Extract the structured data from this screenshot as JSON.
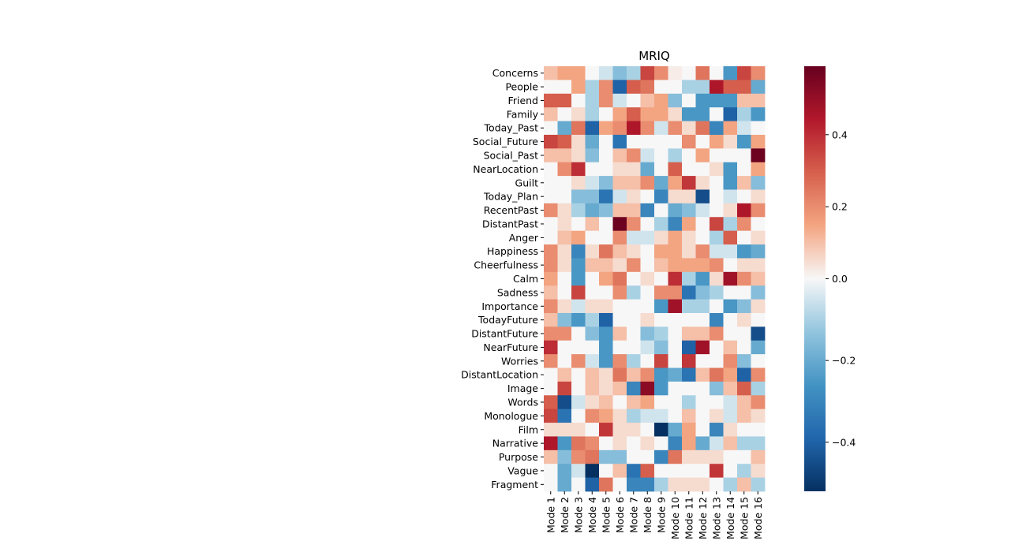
{
  "chart_data": {
    "type": "heatmap",
    "title": "MRIQ",
    "xlabel": "",
    "ylabel": "",
    "colormap": "RdBu_r",
    "vmin": -0.52,
    "vmax": 0.59,
    "colorbar_ticks": [
      0.4,
      0.2,
      0.0,
      -0.2,
      -0.4
    ],
    "colorbar_tick_labels": [
      "0.4",
      "0.2",
      "0.0",
      "−0.2",
      "−0.4"
    ],
    "x_categories": [
      "Mode 1",
      "Mode 2",
      "Mode 3",
      "Mode 4",
      "Mode 5",
      "Mode 6",
      "Mode 7",
      "Mode 8",
      "Mode 9",
      "Mode 10",
      "Mode 11",
      "Mode 12",
      "Mode 13",
      "Mode 14",
      "Mode 15",
      "Mode 16"
    ],
    "y_categories": [
      "Concerns",
      "People",
      "Friend",
      "Family",
      "Today_Past",
      "Social_Future",
      "Social_Past",
      "NearLocation",
      "Guilt",
      "Today_Plan",
      "RecentPast",
      "DistantPast",
      "Anger",
      "Happiness",
      "Cheerfulness",
      "Calm",
      "Sadness",
      "Importance",
      "TodayFuture",
      "DistantFuture",
      "NearFuture",
      "Worries",
      "DistantLocation",
      "Image",
      "Words",
      "Monologue",
      "Film",
      "Narrative",
      "Purpose",
      "Vague",
      "Fragment"
    ],
    "values": [
      [
        0.1,
        0.15,
        0.15,
        0.0,
        -0.05,
        -0.15,
        -0.1,
        0.35,
        0.2,
        0.02,
        0.0,
        0.25,
        0.0,
        -0.25,
        0.35,
        0.2
      ],
      [
        0.0,
        0.0,
        0.15,
        -0.1,
        0.2,
        -0.4,
        0.3,
        0.25,
        0.0,
        0.0,
        -0.1,
        -0.1,
        0.45,
        0.3,
        0.3,
        -0.2
      ],
      [
        0.3,
        0.3,
        0.0,
        -0.1,
        0.2,
        -0.05,
        0.0,
        0.1,
        0.15,
        -0.15,
        0.0,
        -0.25,
        -0.25,
        -0.25,
        0.1,
        0.1
      ],
      [
        0.1,
        0.0,
        0.05,
        -0.1,
        0.0,
        0.15,
        0.3,
        0.15,
        0.15,
        0.05,
        -0.25,
        -0.25,
        0.0,
        -0.4,
        -0.1,
        -0.25
      ],
      [
        0.0,
        -0.2,
        0.25,
        -0.4,
        0.15,
        0.2,
        0.45,
        0.2,
        -0.05,
        0.2,
        0.05,
        0.25,
        -0.3,
        0.15,
        -0.05,
        0.0
      ],
      [
        0.35,
        0.3,
        0.05,
        -0.2,
        0.0,
        -0.35,
        0.0,
        0.0,
        0.0,
        0.0,
        0.2,
        0.0,
        0.15,
        0.05,
        -0.25,
        0.15
      ],
      [
        0.1,
        0.1,
        0.05,
        -0.15,
        0.0,
        0.1,
        0.2,
        -0.05,
        0.0,
        -0.1,
        0.0,
        0.15,
        0.0,
        0.0,
        0.0,
        0.58
      ],
      [
        0.0,
        0.2,
        0.4,
        0.0,
        0.0,
        0.05,
        0.05,
        -0.2,
        0.0,
        0.3,
        0.0,
        0.0,
        0.05,
        -0.25,
        0.0,
        0.15
      ],
      [
        0.0,
        0.0,
        0.05,
        -0.05,
        -0.15,
        0.1,
        0.1,
        0.2,
        -0.2,
        0.15,
        0.38,
        0.05,
        0.0,
        -0.25,
        0.1,
        -0.15
      ],
      [
        0.0,
        0.0,
        -0.15,
        -0.15,
        -0.35,
        -0.05,
        0.05,
        0.0,
        -0.3,
        0.05,
        0.05,
        -0.45,
        0.0,
        -0.05,
        0.0,
        0.05
      ],
      [
        0.2,
        0.05,
        -0.1,
        -0.2,
        -0.15,
        0.1,
        0.1,
        -0.3,
        0.0,
        -0.2,
        -0.15,
        -0.05,
        0.0,
        0.05,
        0.45,
        0.2
      ],
      [
        0.0,
        0.05,
        0.0,
        0.1,
        0.0,
        0.58,
        0.2,
        0.0,
        -0.1,
        -0.3,
        0.15,
        0.0,
        0.35,
        -0.1,
        0.2,
        0.0
      ],
      [
        0.0,
        0.1,
        0.15,
        0.0,
        0.0,
        0.2,
        -0.05,
        -0.05,
        0.05,
        0.15,
        0.05,
        0.0,
        -0.1,
        0.3,
        0.0,
        0.05
      ],
      [
        0.2,
        0.05,
        -0.3,
        0.05,
        0.25,
        0.1,
        0.05,
        0.0,
        0.15,
        0.15,
        0.05,
        0.2,
        -0.05,
        -0.05,
        -0.25,
        -0.2
      ],
      [
        0.2,
        0.05,
        -0.25,
        0.1,
        0.1,
        0.05,
        0.2,
        0.0,
        0.1,
        0.15,
        0.15,
        0.15,
        0.2,
        0.0,
        0.05,
        0.05
      ],
      [
        0.15,
        0.0,
        -0.25,
        0.0,
        0.15,
        0.25,
        0.0,
        0.05,
        0.0,
        0.4,
        -0.1,
        -0.25,
        0.05,
        0.48,
        0.2,
        0.1
      ],
      [
        0.1,
        0.0,
        0.35,
        0.0,
        0.0,
        0.2,
        -0.1,
        0.0,
        0.2,
        0.2,
        -0.35,
        -0.15,
        -0.1,
        0.0,
        0.0,
        -0.15
      ],
      [
        0.2,
        0.05,
        -0.05,
        0.05,
        0.05,
        0.0,
        0.0,
        0.0,
        -0.25,
        0.48,
        -0.1,
        -0.1,
        0.0,
        -0.25,
        -0.15,
        0.05
      ],
      [
        0.1,
        -0.15,
        -0.25,
        -0.1,
        -0.4,
        0.0,
        0.0,
        0.05,
        0.0,
        0.0,
        0.0,
        0.0,
        -0.3,
        0.0,
        0.05,
        0.0
      ],
      [
        0.2,
        0.2,
        0.0,
        -0.15,
        -0.25,
        0.1,
        0.0,
        -0.15,
        -0.1,
        0.0,
        0.1,
        0.1,
        0.2,
        0.0,
        0.0,
        -0.45
      ],
      [
        0.4,
        0.0,
        0.0,
        0.0,
        -0.25,
        0.0,
        0.0,
        -0.05,
        -0.15,
        0.0,
        -0.4,
        0.48,
        0.0,
        0.1,
        0.0,
        -0.2
      ],
      [
        0.2,
        0.0,
        0.2,
        -0.05,
        -0.25,
        0.2,
        -0.1,
        0.0,
        0.35,
        0.0,
        0.38,
        0.0,
        0.0,
        0.2,
        -0.15,
        0.0
      ],
      [
        0.0,
        0.1,
        0.0,
        0.1,
        0.05,
        0.25,
        0.1,
        0.2,
        -0.25,
        -0.2,
        -0.35,
        0.1,
        0.25,
        0.15,
        -0.4,
        0.2
      ],
      [
        0.0,
        0.35,
        0.0,
        0.1,
        0.05,
        0.1,
        -0.3,
        0.52,
        -0.25,
        0.0,
        0.0,
        0.0,
        -0.15,
        0.1,
        0.3,
        -0.1
      ],
      [
        0.3,
        -0.45,
        -0.05,
        0.05,
        0.1,
        0.0,
        0.1,
        0.15,
        0.0,
        0.0,
        -0.1,
        0.0,
        0.0,
        -0.05,
        0.1,
        0.2
      ],
      [
        0.35,
        -0.35,
        0.0,
        0.2,
        0.15,
        0.05,
        -0.1,
        -0.05,
        -0.05,
        0.0,
        0.1,
        0.0,
        0.05,
        -0.05,
        0.1,
        0.05
      ],
      [
        0.05,
        0.05,
        0.05,
        0.0,
        0.38,
        0.05,
        0.05,
        0.0,
        -0.52,
        -0.2,
        0.15,
        0.0,
        -0.3,
        0.05,
        0.0,
        0.0
      ],
      [
        0.45,
        -0.25,
        0.25,
        0.2,
        0.0,
        0.05,
        0.0,
        0.05,
        0.0,
        -0.3,
        0.15,
        -0.2,
        -0.05,
        0.1,
        -0.1,
        -0.1
      ],
      [
        0.1,
        -0.15,
        0.2,
        0.25,
        -0.15,
        -0.15,
        0.0,
        0.0,
        -0.3,
        0.25,
        0.05,
        0.05,
        0.05,
        0.0,
        0.0,
        0.1
      ],
      [
        0.0,
        -0.2,
        -0.05,
        -0.52,
        0.0,
        0.1,
        -0.35,
        0.3,
        0.0,
        0.0,
        0.0,
        0.0,
        0.38,
        0.0,
        -0.1,
        0.05
      ],
      [
        0.0,
        -0.2,
        0.0,
        -0.4,
        0.25,
        0.0,
        -0.3,
        -0.3,
        -0.1,
        0.05,
        0.05,
        0.05,
        0.0,
        -0.1,
        0.1,
        -0.1
      ]
    ]
  }
}
